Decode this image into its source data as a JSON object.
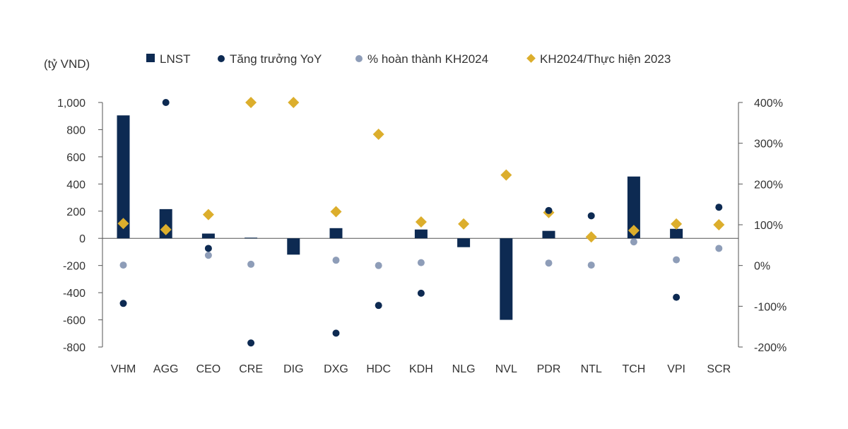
{
  "chart_data": {
    "type": "bar",
    "unit_label": "(tỷ VND)",
    "categories": [
      "VHM",
      "AGG",
      "CEO",
      "CRE",
      "DIG",
      "DXG",
      "HDC",
      "KDH",
      "NLG",
      "NVL",
      "PDR",
      "NTL",
      "TCH",
      "VPI",
      "SCR"
    ],
    "left_axis": {
      "ylim": [
        -800,
        1000
      ],
      "ticks": [
        1000,
        800,
        600,
        400,
        200,
        0,
        -200,
        -400,
        -600,
        -800
      ],
      "tick_labels": [
        "1,000",
        "800",
        "600",
        "400",
        "200",
        "0",
        "-200",
        "-400",
        "-600",
        "-800"
      ]
    },
    "right_axis": {
      "ylim": [
        -200,
        400
      ],
      "ticks": [
        400,
        300,
        200,
        100,
        0,
        -100,
        -200
      ],
      "tick_labels": [
        "400%",
        "300%",
        "200%",
        "100%",
        "0%",
        "-100%",
        "-200%"
      ]
    },
    "series": [
      {
        "name": "LNST",
        "kind": "bar",
        "axis": "left",
        "color": "#0d2a52",
        "values": [
          905,
          215,
          35,
          5,
          -120,
          75,
          0,
          65,
          -65,
          -600,
          55,
          0,
          455,
          70,
          0
        ]
      },
      {
        "name": "Tăng trưởng YoY",
        "kind": "dot",
        "axis": "right",
        "color": "#0d2a52",
        "values": [
          -93,
          400,
          42,
          -190,
          null,
          -166,
          -98,
          -68,
          null,
          null,
          135,
          122,
          null,
          -78,
          143
        ]
      },
      {
        "name": "% hoàn thành KH2024",
        "kind": "dot",
        "axis": "right",
        "color": "#8e9db8",
        "values": [
          1,
          null,
          25,
          3,
          null,
          13,
          0,
          7,
          null,
          null,
          6,
          1,
          58,
          14,
          42
        ]
      },
      {
        "name": "KH2024/Thực hiện 2023",
        "kind": "diamond",
        "axis": "right",
        "color": "#dcae2c",
        "values": [
          103,
          88,
          125,
          400,
          400,
          132,
          322,
          107,
          102,
          222,
          130,
          70,
          86,
          102,
          100
        ]
      }
    ]
  }
}
